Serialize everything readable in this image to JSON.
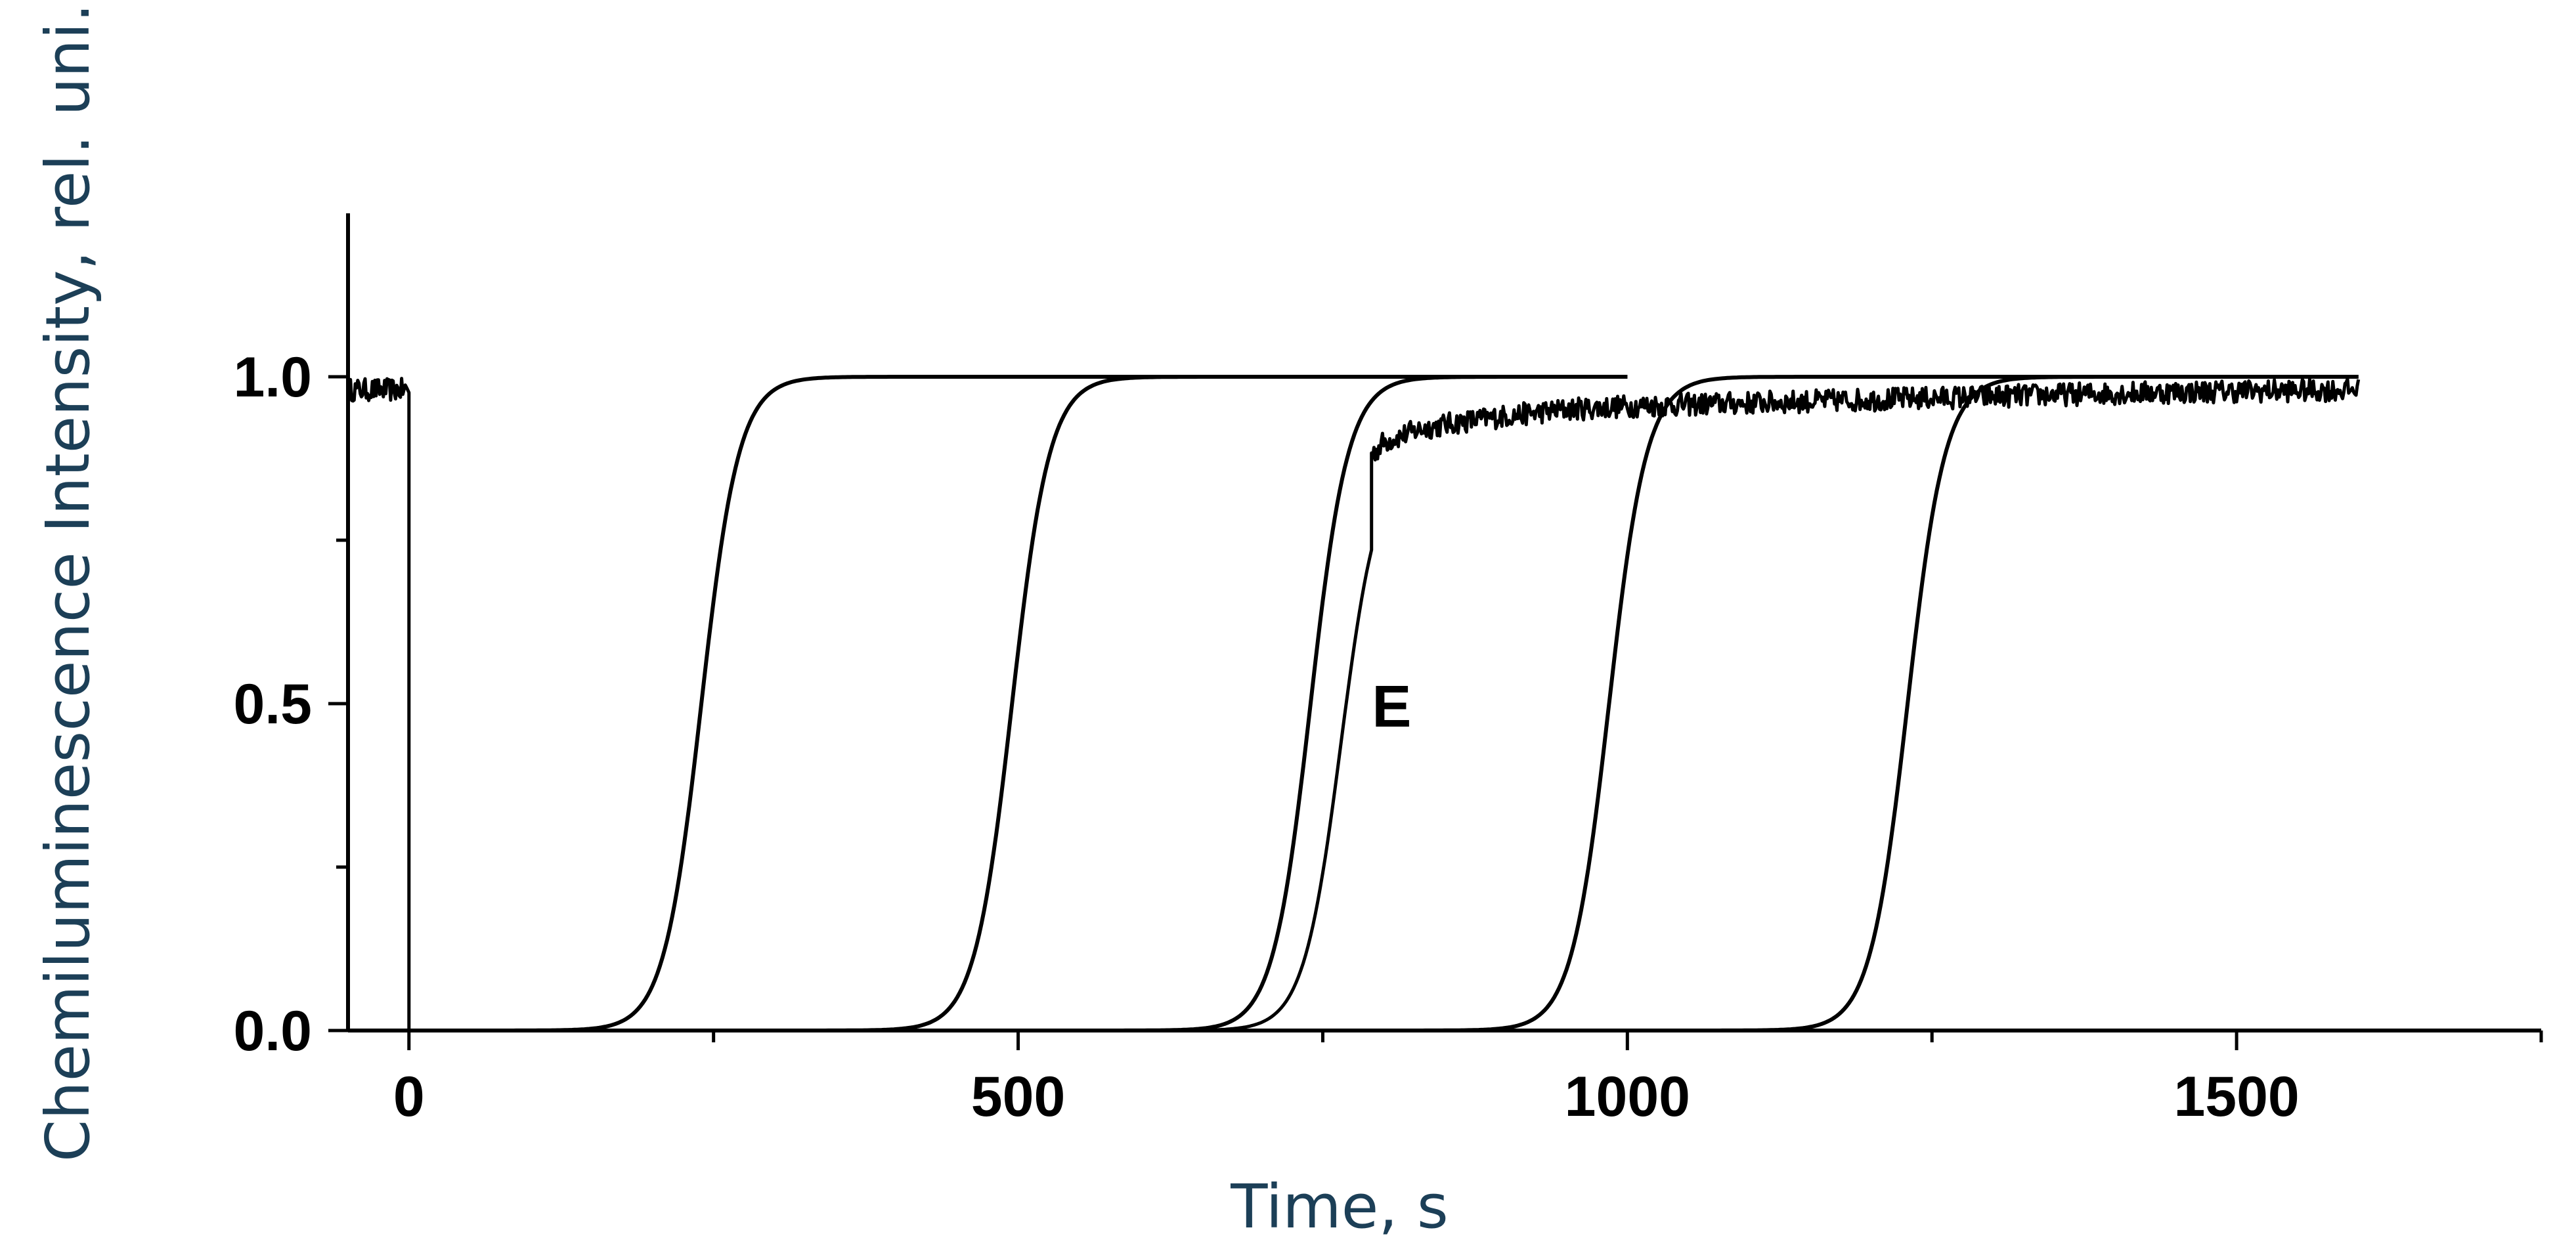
{
  "chart_data": {
    "type": "line",
    "title": "",
    "xlabel": "Time, s",
    "ylabel": "Chemiluminescence Intensity, rel. uni.",
    "xlim": [
      -50,
      1750
    ],
    "ylim": [
      0,
      1.25
    ],
    "x_ticks": [
      0,
      500,
      1000,
      1500
    ],
    "x_tick_labels": [
      "0",
      "500",
      "1000",
      "1500"
    ],
    "y_ticks": [
      0.0,
      0.5,
      1.0
    ],
    "y_tick_labels": [
      "0.0",
      "0.5",
      "1.0"
    ],
    "grid": false,
    "legend": "none",
    "series": [
      {
        "kind": "sigmoid",
        "midpoint": 240,
        "plateau": 1.0,
        "x_start": 0,
        "x_end": 1000
      },
      {
        "kind": "sigmoid",
        "midpoint": 495,
        "plateau": 1.0,
        "x_start": 0,
        "x_end": 1000
      },
      {
        "kind": "sigmoid",
        "midpoint": 740,
        "plateau": 1.0,
        "x_start": 0,
        "x_end": 1000
      },
      {
        "kind": "sigmoid",
        "midpoint": 985,
        "plateau": 1.0,
        "x_start": 0,
        "x_end": 1600
      },
      {
        "kind": "sigmoid",
        "midpoint": 1230,
        "plateau": 1.0,
        "x_start": 0,
        "x_end": 1600
      },
      {
        "kind": "experimental",
        "baseline_start": [
          -50,
          0
        ],
        "baseline_value": 0.98,
        "drop_at": 0,
        "rise_midpoint": 765,
        "x": [
          790,
          800,
          830,
          860,
          900,
          950,
          1000,
          1100,
          1200,
          1300,
          1400,
          1500,
          1600
        ],
        "y": [
          0.88,
          0.9,
          0.92,
          0.93,
          0.94,
          0.95,
          0.955,
          0.96,
          0.965,
          0.97,
          0.975,
          0.978,
          0.98
        ]
      }
    ],
    "annotations": [
      {
        "text": "E",
        "x": 785,
        "y": 0.5
      }
    ]
  }
}
